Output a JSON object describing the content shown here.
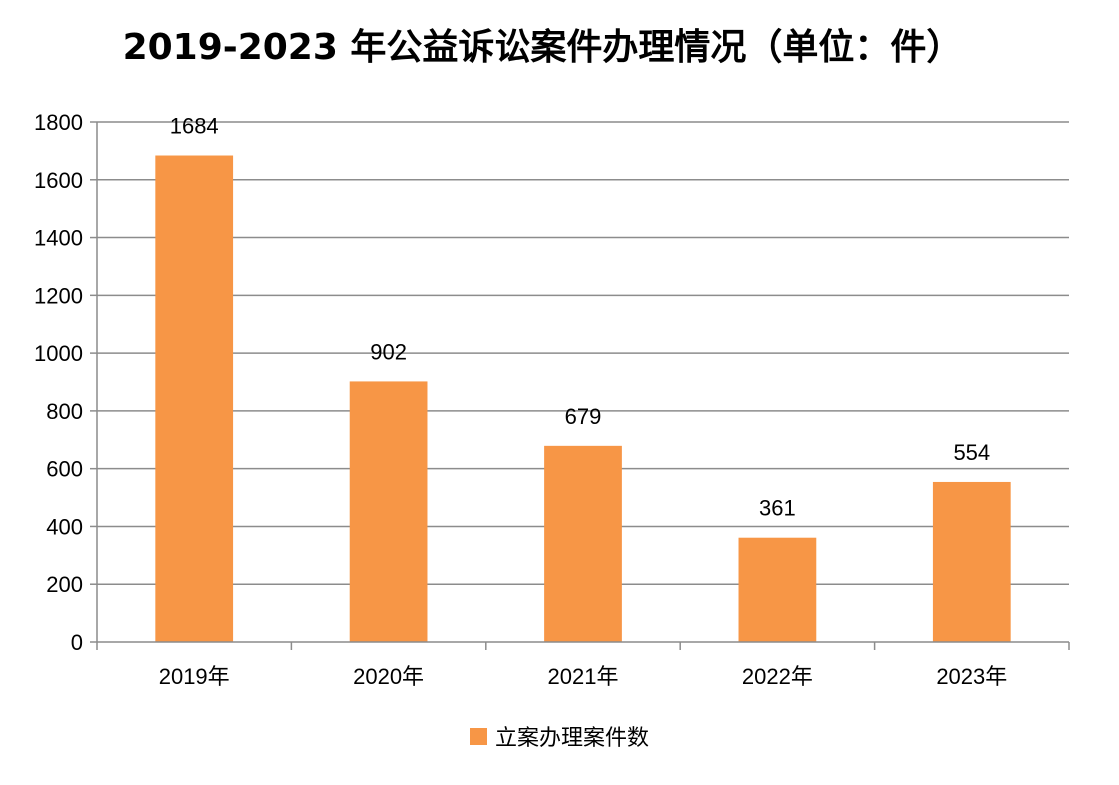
{
  "chart_data": {
    "type": "bar",
    "title": "2019-2023 年公益诉讼案件办理情况（单位：件）",
    "categories": [
      "2019年",
      "2020年",
      "2021年",
      "2022年",
      "2023年"
    ],
    "series": [
      {
        "name": "立案办理案件数",
        "values": [
          1684,
          902,
          679,
          361,
          554
        ],
        "color": "#F79646"
      }
    ],
    "ylim": [
      0,
      1800
    ],
    "yticks": [
      0,
      200,
      400,
      600,
      800,
      1000,
      1200,
      1400,
      1600,
      1800
    ],
    "grid": true,
    "legend_position": "bottom",
    "data_labels": true
  }
}
